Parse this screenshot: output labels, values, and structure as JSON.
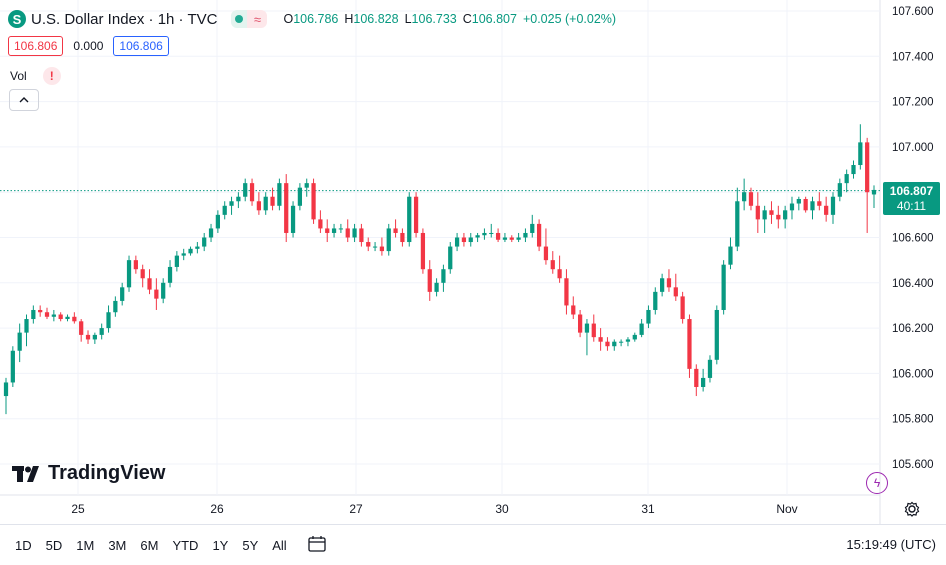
{
  "header": {
    "symbol_icon": "S",
    "title": "U.S. Dollar Index · 1h · TVC",
    "ohlc": [
      {
        "k": "O",
        "v": "106.786"
      },
      {
        "k": "H",
        "v": "106.828"
      },
      {
        "k": "L",
        "v": "106.733"
      },
      {
        "k": "C",
        "v": "106.807"
      },
      {
        "k": "",
        "v": "+0.025 (+0.02%)"
      }
    ],
    "sell_price": "106.806",
    "spread": "0.000",
    "buy_price": "106.806",
    "volume_label": "Vol",
    "volume_warning": "!"
  },
  "logo_text": "TradingView",
  "price_badge": {
    "price": "106.807",
    "countdown": "40:11"
  },
  "toolbar": {
    "timeframes": [
      "1D",
      "5D",
      "1M",
      "3M",
      "6M",
      "YTD",
      "1Y",
      "5Y",
      "All"
    ],
    "clock": "15:19:49 (UTC)"
  },
  "colors": {
    "up": "#089981",
    "down": "#f23645",
    "grid": "#f0f3fa"
  },
  "chart_data": {
    "type": "candlestick",
    "y_ticks": [
      "107.600",
      "107.400",
      "107.200",
      "107.000",
      "106.800",
      "106.600",
      "106.400",
      "106.200",
      "106.000",
      "105.800",
      "105.600"
    ],
    "x_ticks": [
      {
        "label": "25",
        "x": 0
      },
      {
        "label": "26",
        "x": 24
      },
      {
        "label": "27",
        "x": 48
      },
      {
        "label": "30",
        "x": 72
      },
      {
        "label": "31",
        "x": 96
      },
      {
        "label": "Nov",
        "x": 120
      }
    ],
    "ylim": [
      105.55,
      107.63
    ],
    "last_price": 106.807,
    "candles": [
      [
        105.9,
        105.98,
        105.82,
        105.96
      ],
      [
        105.96,
        106.12,
        105.94,
        106.1
      ],
      [
        106.1,
        106.22,
        106.05,
        106.18
      ],
      [
        106.18,
        106.26,
        106.12,
        106.24
      ],
      [
        106.24,
        106.3,
        106.22,
        106.28
      ],
      [
        106.28,
        106.3,
        106.25,
        106.27
      ],
      [
        106.27,
        106.29,
        106.24,
        106.25
      ],
      [
        106.25,
        106.28,
        106.23,
        106.26
      ],
      [
        106.26,
        106.27,
        106.23,
        106.24
      ],
      [
        106.24,
        106.26,
        106.23,
        106.25
      ],
      [
        106.25,
        106.27,
        106.22,
        106.23
      ],
      [
        106.23,
        106.24,
        106.14,
        106.17
      ],
      [
        106.17,
        106.19,
        106.13,
        106.15
      ],
      [
        106.15,
        106.18,
        106.13,
        106.17
      ],
      [
        106.17,
        106.22,
        106.15,
        106.2
      ],
      [
        106.2,
        106.3,
        106.18,
        106.27
      ],
      [
        106.27,
        106.34,
        106.25,
        106.32
      ],
      [
        106.32,
        106.4,
        106.3,
        106.38
      ],
      [
        106.38,
        106.52,
        106.36,
        106.5
      ],
      [
        106.5,
        106.52,
        106.44,
        106.46
      ],
      [
        106.46,
        106.48,
        106.38,
        106.42
      ],
      [
        106.42,
        106.46,
        106.35,
        106.37
      ],
      [
        106.37,
        106.42,
        106.28,
        106.33
      ],
      [
        106.33,
        106.42,
        106.31,
        106.4
      ],
      [
        106.4,
        106.5,
        106.38,
        106.47
      ],
      [
        106.47,
        106.54,
        106.45,
        106.52
      ],
      [
        106.52,
        106.55,
        106.5,
        106.53
      ],
      [
        106.53,
        106.56,
        106.52,
        106.55
      ],
      [
        106.55,
        106.58,
        106.53,
        106.56
      ],
      [
        106.56,
        106.62,
        106.54,
        106.6
      ],
      [
        106.6,
        106.66,
        106.58,
        106.64
      ],
      [
        106.64,
        106.72,
        106.62,
        106.7
      ],
      [
        106.7,
        106.76,
        106.68,
        106.74
      ],
      [
        106.74,
        106.78,
        106.7,
        106.76
      ],
      [
        106.76,
        106.8,
        106.73,
        106.78
      ],
      [
        106.78,
        106.86,
        106.76,
        106.84
      ],
      [
        106.84,
        106.86,
        106.74,
        106.76
      ],
      [
        106.76,
        106.8,
        106.7,
        106.72
      ],
      [
        106.72,
        106.8,
        106.7,
        106.78
      ],
      [
        106.78,
        106.82,
        106.72,
        106.74
      ],
      [
        106.74,
        106.86,
        106.72,
        106.84
      ],
      [
        106.84,
        106.88,
        106.58,
        106.62
      ],
      [
        106.62,
        106.76,
        106.6,
        106.74
      ],
      [
        106.74,
        106.84,
        106.72,
        106.82
      ],
      [
        106.82,
        106.86,
        106.78,
        106.84
      ],
      [
        106.84,
        106.86,
        106.66,
        106.68
      ],
      [
        106.68,
        106.72,
        106.62,
        106.64
      ],
      [
        106.64,
        106.68,
        106.58,
        106.62
      ],
      [
        106.62,
        106.66,
        106.6,
        106.64
      ],
      [
        106.64,
        106.66,
        106.62,
        106.64
      ],
      [
        106.64,
        106.68,
        106.58,
        106.6
      ],
      [
        106.6,
        106.66,
        106.58,
        106.64
      ],
      [
        106.64,
        106.66,
        106.56,
        106.58
      ],
      [
        106.58,
        106.6,
        106.54,
        106.56
      ],
      [
        106.56,
        106.58,
        106.54,
        106.56
      ],
      [
        106.56,
        106.6,
        106.52,
        106.54
      ],
      [
        106.54,
        106.66,
        106.52,
        106.64
      ],
      [
        106.64,
        106.68,
        106.6,
        106.62
      ],
      [
        106.62,
        106.64,
        106.56,
        106.58
      ],
      [
        106.58,
        106.8,
        106.56,
        106.78
      ],
      [
        106.78,
        106.8,
        106.6,
        106.62
      ],
      [
        106.62,
        106.64,
        106.44,
        106.46
      ],
      [
        106.46,
        106.5,
        106.32,
        106.36
      ],
      [
        106.36,
        106.42,
        106.34,
        106.4
      ],
      [
        106.4,
        106.48,
        106.36,
        106.46
      ],
      [
        106.46,
        106.58,
        106.44,
        106.56
      ],
      [
        106.56,
        106.62,
        106.54,
        106.6
      ],
      [
        106.6,
        106.62,
        106.56,
        106.58
      ],
      [
        106.58,
        106.62,
        106.56,
        106.6
      ],
      [
        106.6,
        106.62,
        106.58,
        106.61
      ],
      [
        106.61,
        106.64,
        106.59,
        106.62
      ],
      [
        106.62,
        106.66,
        106.6,
        106.62
      ],
      [
        106.62,
        106.64,
        106.58,
        106.59
      ],
      [
        106.59,
        106.62,
        106.58,
        106.6
      ],
      [
        106.6,
        106.61,
        106.58,
        106.59
      ],
      [
        106.59,
        106.62,
        106.58,
        106.6
      ],
      [
        106.6,
        106.64,
        106.58,
        106.62
      ],
      [
        106.62,
        106.7,
        106.6,
        106.66
      ],
      [
        106.66,
        106.68,
        106.54,
        106.56
      ],
      [
        106.56,
        106.64,
        106.48,
        106.5
      ],
      [
        106.5,
        106.54,
        106.44,
        106.46
      ],
      [
        106.46,
        106.52,
        106.4,
        106.42
      ],
      [
        106.42,
        106.46,
        106.26,
        106.3
      ],
      [
        106.3,
        106.34,
        106.24,
        106.26
      ],
      [
        106.26,
        106.28,
        106.16,
        106.18
      ],
      [
        106.18,
        106.24,
        106.08,
        106.22
      ],
      [
        106.22,
        106.26,
        106.14,
        106.16
      ],
      [
        106.16,
        106.2,
        106.1,
        106.14
      ],
      [
        106.14,
        106.16,
        106.1,
        106.12
      ],
      [
        106.12,
        106.15,
        106.1,
        106.14
      ],
      [
        106.14,
        106.15,
        106.12,
        106.14
      ],
      [
        106.14,
        106.16,
        106.12,
        106.15
      ],
      [
        106.15,
        106.18,
        106.14,
        106.17
      ],
      [
        106.17,
        106.24,
        106.16,
        106.22
      ],
      [
        106.22,
        106.3,
        106.2,
        106.28
      ],
      [
        106.28,
        106.38,
        106.26,
        106.36
      ],
      [
        106.36,
        106.44,
        106.34,
        106.42
      ],
      [
        106.42,
        106.46,
        106.36,
        106.38
      ],
      [
        106.38,
        106.44,
        106.32,
        106.34
      ],
      [
        106.34,
        106.36,
        106.22,
        106.24
      ],
      [
        106.24,
        106.26,
        105.98,
        106.02
      ],
      [
        106.02,
        106.04,
        105.9,
        105.94
      ],
      [
        105.94,
        106.02,
        105.92,
        105.98
      ],
      [
        105.98,
        106.08,
        105.96,
        106.06
      ],
      [
        106.06,
        106.3,
        106.04,
        106.28
      ],
      [
        106.28,
        106.5,
        106.26,
        106.48
      ],
      [
        106.48,
        106.6,
        106.46,
        106.56
      ],
      [
        106.56,
        106.82,
        106.54,
        106.76
      ],
      [
        106.76,
        106.86,
        106.72,
        106.8
      ],
      [
        106.8,
        106.82,
        106.72,
        106.74
      ],
      [
        106.74,
        106.8,
        106.62,
        106.68
      ],
      [
        106.68,
        106.74,
        106.62,
        106.72
      ],
      [
        106.72,
        106.76,
        106.66,
        106.7
      ],
      [
        106.7,
        106.74,
        106.64,
        106.68
      ],
      [
        106.68,
        106.74,
        106.64,
        106.72
      ],
      [
        106.72,
        106.78,
        106.68,
        106.75
      ],
      [
        106.75,
        106.78,
        106.72,
        106.77
      ],
      [
        106.77,
        106.78,
        106.71,
        106.72
      ],
      [
        106.72,
        106.78,
        106.68,
        106.76
      ],
      [
        106.76,
        106.8,
        106.72,
        106.74
      ],
      [
        106.74,
        106.78,
        106.67,
        106.7
      ],
      [
        106.7,
        106.8,
        106.66,
        106.78
      ],
      [
        106.78,
        106.86,
        106.76,
        106.84
      ],
      [
        106.84,
        106.9,
        106.8,
        106.88
      ],
      [
        106.88,
        106.94,
        106.86,
        106.92
      ],
      [
        106.92,
        107.1,
        106.9,
        107.02
      ],
      [
        107.02,
        107.04,
        106.62,
        106.8
      ],
      [
        106.79,
        106.83,
        106.73,
        106.81
      ]
    ]
  }
}
